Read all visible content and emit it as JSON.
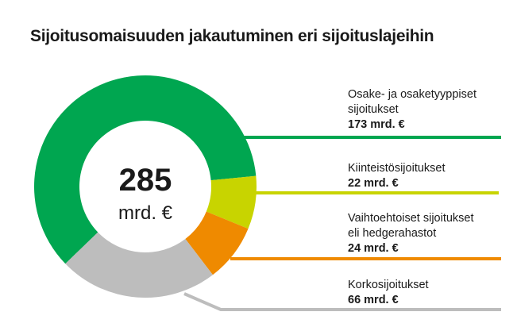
{
  "chart_data": {
    "type": "pie",
    "title": "Sijoitusomaisuuden jakautuminen eri sijoituslajeihin",
    "center_total": "285",
    "center_unit": "mrd. €",
    "slices": [
      {
        "label": "Osake- ja osaketyyppiset sijoitukset",
        "label_lines": [
          "Osake- ja osaketyyppiset",
          "sijoitukset"
        ],
        "value": 173,
        "value_label": "173 mrd. €",
        "color": "#00a650"
      },
      {
        "label": "Kiinteistösijoitukset",
        "label_lines": [
          "Kiinteistösijoitukset"
        ],
        "value": 22,
        "value_label": "22 mrd. €",
        "color": "#c8d400"
      },
      {
        "label": "Vaihtoehtoiset sijoitukset eli hedgerahastot",
        "label_lines": [
          "Vaihtoehtoiset sijoitukset",
          "eli hedgerahastot"
        ],
        "value": 24,
        "value_label": "24 mrd. €",
        "color": "#ef8a00"
      },
      {
        "label": "Korkosijoitukset",
        "label_lines": [
          "Korkosijoitukset"
        ],
        "value": 66,
        "value_label": "66 mrd. €",
        "color": "#bdbdbd"
      }
    ]
  }
}
